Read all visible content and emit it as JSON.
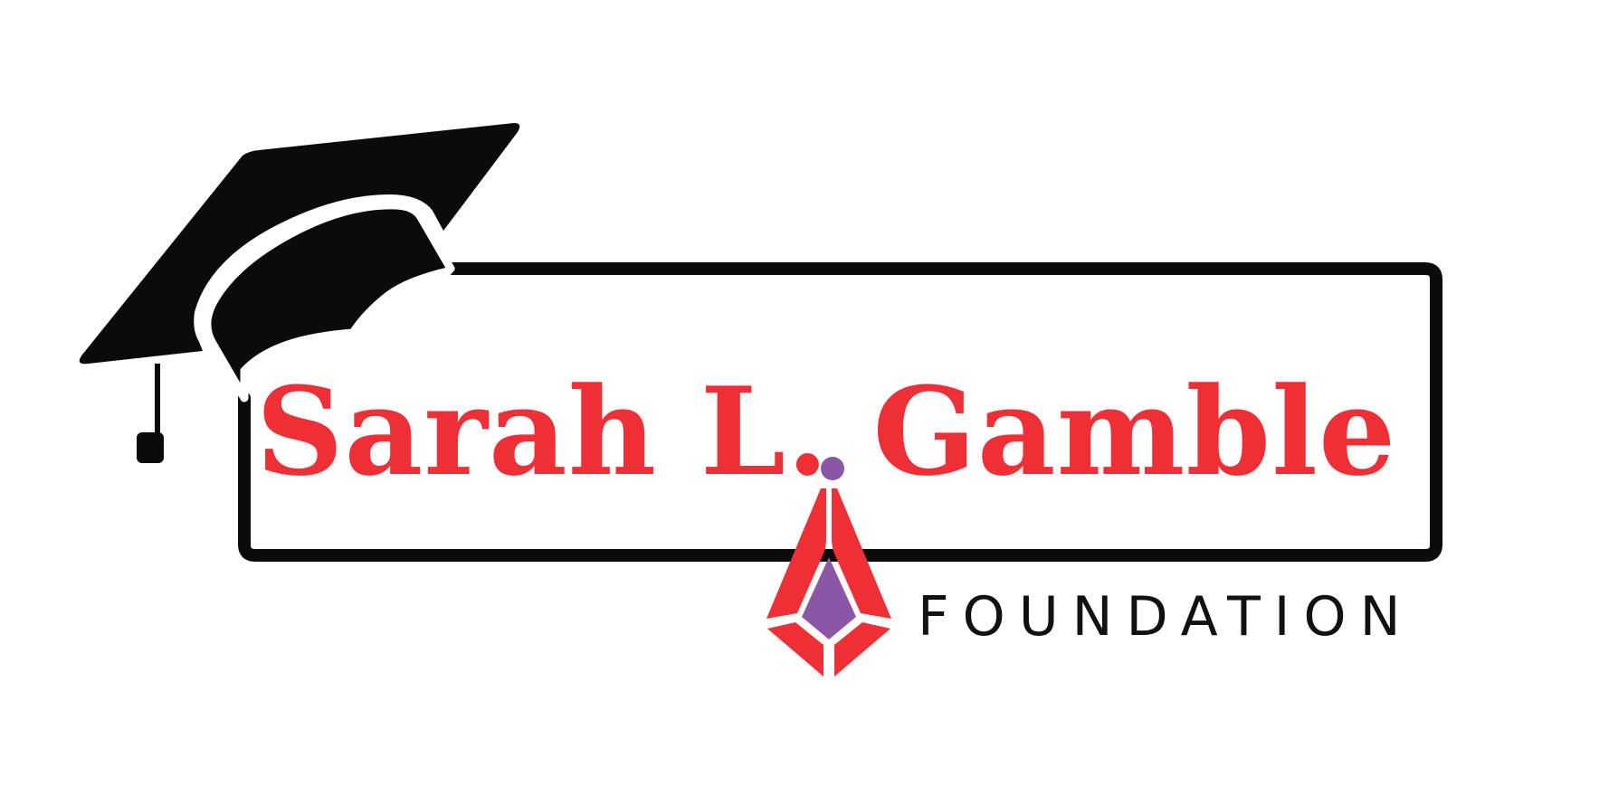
{
  "logo": {
    "name": "Sarah L. Gamble",
    "tagline": "FOUNDATION"
  },
  "colors": {
    "background": "#ffffff",
    "name_text": "#ee2f35",
    "tagline_text": "#111111",
    "cap": "#0b0b0b",
    "frame": "#0b0b0b",
    "emblem_red": "#ee2f35",
    "emblem_purple": "#8c56a6"
  },
  "icons": {
    "cap": "graduation-cap-icon",
    "emblem": "diamond-emblem-icon"
  }
}
